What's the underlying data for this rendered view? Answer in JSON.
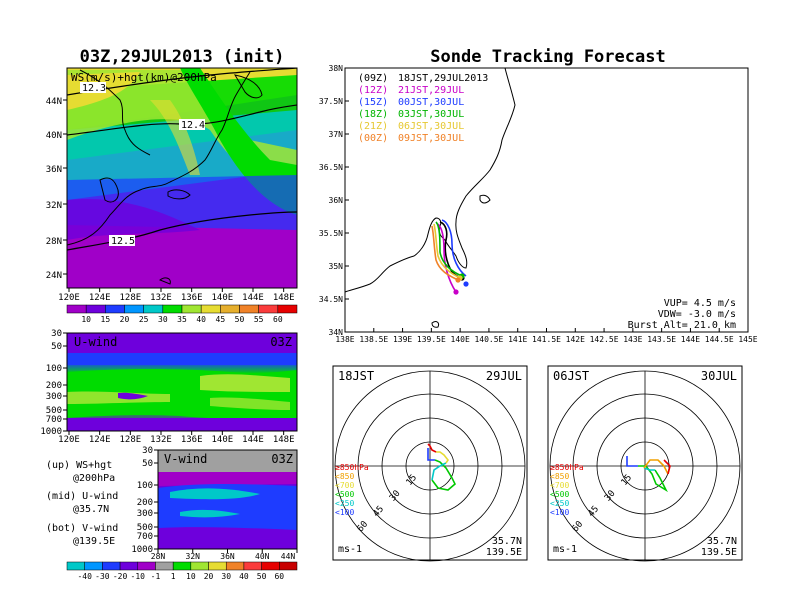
{
  "left_title": "03Z,29JUL2013 (init)",
  "right_title": "Sonde Tracking Forecast",
  "map_panel": {
    "label": "WS(m/s)+hgt(km)@200hPa",
    "contours": [
      "12.3",
      "12.4",
      "12.5"
    ],
    "lat_ticks": [
      "44N",
      "40N",
      "36N",
      "32N",
      "28N",
      "24N"
    ],
    "lon_ticks": [
      "120E",
      "124E",
      "128E",
      "132E",
      "136E",
      "140E",
      "144E",
      "148E"
    ],
    "colorbar": {
      "ticks": [
        "10",
        "15",
        "20",
        "25",
        "30",
        "35",
        "40",
        "45",
        "50",
        "55",
        "60"
      ],
      "colors": [
        "#a000c8",
        "#6e00dc",
        "#1e3cff",
        "#0096ff",
        "#00c8c8",
        "#00dc00",
        "#a0e632",
        "#e6dc32",
        "#e6af2d",
        "#f08228",
        "#fa3c3c",
        "#e60000"
      ]
    }
  },
  "u_panel": {
    "label": "U-wind",
    "time": "03Z",
    "p_ticks": [
      "30",
      "50",
      "100",
      "200",
      "300",
      "500",
      "700",
      "1000"
    ],
    "lon_ticks": [
      "120E",
      "124E",
      "128E",
      "132E",
      "136E",
      "140E",
      "144E",
      "148E"
    ]
  },
  "v_panel": {
    "label": "V-wind",
    "time": "03Z",
    "p_ticks": [
      "30",
      "50",
      "100",
      "200",
      "300",
      "500",
      "700",
      "1000"
    ],
    "lat_ticks": [
      "28N",
      "32N",
      "36N",
      "40N",
      "44N"
    ],
    "colorbar": {
      "ticks": [
        "-40",
        "-30",
        "-20",
        "-10",
        "-1",
        "1",
        "10",
        "20",
        "30",
        "40",
        "50",
        "60"
      ],
      "colors": [
        "#00c8c8",
        "#0096ff",
        "#1e3cff",
        "#6e00dc",
        "#a000c8",
        "#a0a0a0",
        "#00dc00",
        "#a0e632",
        "#e6dc32",
        "#f08228",
        "#fa3c3c",
        "#e60000",
        "#c80000"
      ]
    }
  },
  "legend_notes": [
    {
      "head": "(up) WS+hgt",
      "sub": "@200hPa"
    },
    {
      "head": "(mid) U-wind",
      "sub": "@35.7N"
    },
    {
      "head": "(bot) V-wind",
      "sub": "@139.5E"
    }
  ],
  "track_map": {
    "lat_ticks": [
      "38N",
      "37.5N",
      "37N",
      "36.5N",
      "36N",
      "35.5N",
      "35N",
      "34.5N",
      "34N"
    ],
    "lon_ticks": [
      "138E",
      "138.5E",
      "139E",
      "139.5E",
      "140E",
      "140.5E",
      "141E",
      "141.5E",
      "142E",
      "142.5E",
      "143E",
      "143.5E",
      "144E",
      "144.5E",
      "145E"
    ],
    "launches": [
      {
        "utc": "(09Z)",
        "jst": "18JST,29JUL2013",
        "color": "#000000"
      },
      {
        "utc": "(12Z)",
        "jst": "21JST,29JUL",
        "color": "#c800c8"
      },
      {
        "utc": "(15Z)",
        "jst": "00JST,30JUL",
        "color": "#1e3cff"
      },
      {
        "utc": "(18Z)",
        "jst": "03JST,30JUL",
        "color": "#00b400"
      },
      {
        "utc": "(21Z)",
        "jst": "06JST,30JUL",
        "color": "#e6c832"
      },
      {
        "utc": "(00Z)",
        "jst": "09JST,30JUL",
        "color": "#f08228"
      }
    ],
    "params": [
      "VUP= 4.5 m/s",
      "VDW= -3.0 m/s",
      "Burst Alt= 21.0 km"
    ]
  },
  "hodographs": [
    {
      "time": "18JST",
      "date": "29JUL"
    },
    {
      "time": "06JST",
      "date": "30JUL"
    }
  ],
  "hodo_common": {
    "ring_labels": [
      "15",
      "30",
      "45",
      "60"
    ],
    "levels": [
      {
        "label": "≥850hPa",
        "color": "#e60000"
      },
      {
        "label": "<850",
        "color": "#f0a000"
      },
      {
        "label": "<700",
        "color": "#e6dc32"
      },
      {
        "label": "<500",
        "color": "#00c800"
      },
      {
        "label": "<250",
        "color": "#00c8c8"
      },
      {
        "label": "<100",
        "color": "#1e3cff"
      }
    ],
    "units": "ms-1",
    "location": [
      "35.7N",
      "139.5E"
    ]
  }
}
